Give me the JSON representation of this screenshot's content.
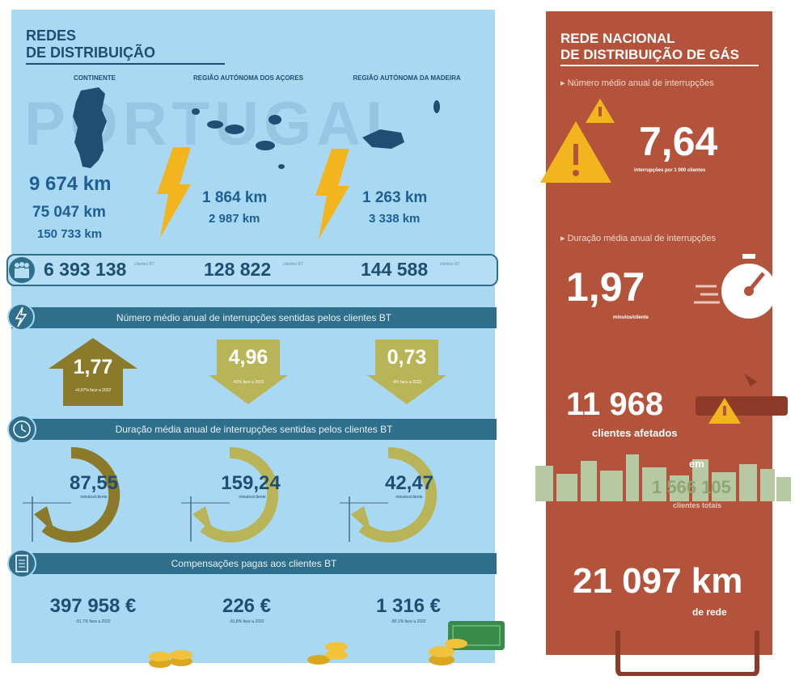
{
  "left": {
    "title_line1": "REDES",
    "title_line2": "DE DISTRIBUIÇÃO",
    "watermark": "PORTUGAL",
    "regions": [
      {
        "name": "CONTINENTE",
        "km": [
          "9 674 km",
          "75 047 km",
          "150 733 km"
        ],
        "clients": "6 393 138",
        "arrow_value": "1,77",
        "arrow_note": "+0,07% face a 2022",
        "arrow_dir": "up",
        "gauge_value": "87,55",
        "comp_value": "397 958 €",
        "comp_note": "-91,7% face a 2022"
      },
      {
        "name": "REGIÃO AUTÓNOMA DOS AÇORES",
        "km": [
          "1 864 km",
          "2 987 km"
        ],
        "clients": "128 822",
        "arrow_value": "4,96",
        "arrow_note": "-42% face a 2022",
        "arrow_dir": "down",
        "gauge_value": "159,24",
        "comp_value": "226 €",
        "comp_note": "-91,8% face a 2022"
      },
      {
        "name": "REGIÃO AUTÓNOMA DA MADEIRA",
        "km": [
          "1 263 km",
          "3 338 km"
        ],
        "clients": "144 588",
        "arrow_value": "0,73",
        "arrow_note": "-4% face a 2022",
        "arrow_dir": "down",
        "gauge_value": "42,47",
        "comp_value": "1 316 €",
        "comp_note": "-80,1% face a 2022"
      }
    ],
    "bars": [
      "Número médio anual de interrupções sentidas pelos clientes BT",
      "Duração média anual de interrupções sentidas pelos clientes BT",
      "Compensações pagas aos clientes BT"
    ],
    "clients_label": "clientes BT",
    "gauge_unit": "minutos/cliente"
  },
  "right": {
    "title_line1": "REDE NACIONAL",
    "title_line2": "DE DISTRIBUIÇÃO DE GÁS",
    "sub1": "▸ Número médio anual de interrupções",
    "val1": "7,64",
    "unit1": "interrupções por 1 000 clientes",
    "sub2": "▸ Duração média anual de interrupções",
    "val2": "1,97",
    "unit2": "minutos/cliente",
    "val3": "11 968",
    "unit3": "clientes afetados",
    "em": "em",
    "val4": "1 566 105",
    "unit4": "clientes totais",
    "val5": "21 097 km",
    "unit5": "de rede"
  },
  "colors": {
    "accent_blue": "#1e4f72",
    "gas_red": "#b4533b",
    "warning_yellow": "#f2b51d",
    "olive": "#8a7a2a"
  }
}
